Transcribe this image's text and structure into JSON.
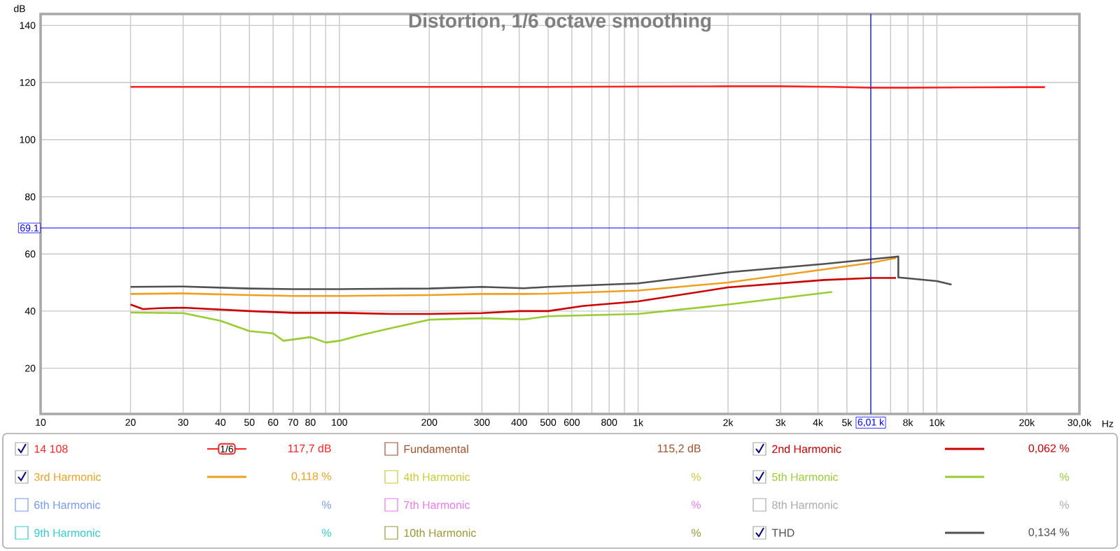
{
  "chart_data": {
    "type": "line",
    "title": "Distortion, 1/6 octave smoothing",
    "ylabel": "dB",
    "xlabel": "Hz",
    "log": "x",
    "grid": true,
    "legend": "bottom",
    "xlim": [
      10,
      30000
    ],
    "ylim": [
      4,
      144
    ],
    "xticks": [
      10,
      20,
      30,
      40,
      50,
      60,
      70,
      80,
      {
        "value": 90,
        "label": null
      },
      100,
      200,
      300,
      400,
      500,
      600,
      {
        "value": 700,
        "label": null
      },
      800,
      {
        "value": 900,
        "label": null
      },
      {
        "value": 1000,
        "label": "1k"
      },
      {
        "value": 2000,
        "label": "2k"
      },
      {
        "value": 3000,
        "label": "3k"
      },
      {
        "value": 4000,
        "label": "4k"
      },
      {
        "value": 5000,
        "label": "5k"
      },
      {
        "value": 6000,
        "label": null
      },
      {
        "value": 7000,
        "label": null
      },
      {
        "value": 8000,
        "label": "8k"
      },
      {
        "value": 9000,
        "label": null
      },
      {
        "value": 10000,
        "label": "10k"
      },
      {
        "value": 20000,
        "label": "20k"
      },
      {
        "value": 30000,
        "label": "30,0k"
      }
    ],
    "yticks": [
      20,
      40,
      60,
      80,
      100,
      120,
      140
    ],
    "ref_lines": [
      {
        "axis": "y",
        "value": 69.1,
        "label": "69.1",
        "color": "#0000ff"
      },
      {
        "axis": "x",
        "value": 6010,
        "label": "6,01 k",
        "color": "#0000ff"
      }
    ],
    "annotations": [
      "1/6",
      "117,7 dB",
      "115,2 dB",
      "0,062 %",
      "0,118 %",
      "%",
      "%",
      "%",
      "%",
      "%",
      "%",
      "%",
      "0,134 %"
    ],
    "series": [
      {
        "name": "14 108",
        "color": "#ff2222",
        "x": [
          20,
          30,
          50,
          100,
          200,
          500,
          1000,
          2000,
          3000,
          4500,
          6000,
          8000,
          12000,
          20000,
          23000
        ],
        "values": [
          118.5,
          118.5,
          118.5,
          118.5,
          118.5,
          118.5,
          118.6,
          118.7,
          118.7,
          118.5,
          118.2,
          118.2,
          118.3,
          118.4,
          118.4
        ]
      },
      {
        "name": "Fundamental",
        "color": "#a0522d"
      },
      {
        "name": "2nd Harmonic",
        "color": "#cc0000",
        "x": [
          20,
          22,
          25,
          30,
          50,
          70,
          100,
          150,
          200,
          300,
          400,
          500,
          656,
          1000,
          2000,
          4200,
          6100,
          7300
        ],
        "values": [
          42.3,
          40.7,
          41.0,
          41.2,
          40.0,
          39.4,
          39.4,
          39.0,
          39.0,
          39.3,
          40.0,
          40.0,
          41.8,
          43.4,
          48.3,
          50.9,
          51.6,
          51.6
        ]
      },
      {
        "name": "3rd Harmonic",
        "color": "#f0a020",
        "x": [
          20,
          30,
          50,
          70,
          100,
          200,
          300,
          415,
          500,
          1000,
          2000,
          4200,
          6100,
          7300
        ],
        "values": [
          46.0,
          46.2,
          45.6,
          45.3,
          45.3,
          45.6,
          46.0,
          46.0,
          46.1,
          47.2,
          50.0,
          54.6,
          57.0,
          58.6
        ]
      },
      {
        "name": "4th Harmonic",
        "color": "#c8c832"
      },
      {
        "name": "5th Harmonic",
        "color": "#99cc33",
        "x": [
          20,
          30,
          40,
          50,
          60,
          65,
          80,
          90,
          100,
          120,
          150,
          200,
          300,
          415,
          500,
          1000,
          2000,
          4460
        ],
        "values": [
          39.5,
          39.3,
          36.6,
          33.0,
          32.2,
          29.6,
          30.9,
          29.0,
          29.6,
          31.8,
          34.1,
          37.0,
          37.5,
          37.1,
          38.2,
          39.0,
          42.3,
          46.7
        ]
      },
      {
        "name": "6th Harmonic",
        "color": "#7799ee"
      },
      {
        "name": "7th Harmonic",
        "color": "#ee77ee"
      },
      {
        "name": "8th Harmonic",
        "color": "#aaaaaa"
      },
      {
        "name": "9th Harmonic",
        "color": "#33cccc"
      },
      {
        "name": "10th Harmonic",
        "color": "#999933"
      },
      {
        "name": "THD",
        "color": "#505050",
        "x": [
          20,
          30,
          50,
          70,
          100,
          200,
          300,
          415,
          500,
          1000,
          2050,
          4180,
          6100,
          7430,
          7430,
          8000,
          10000,
          11200
        ],
        "values": [
          48.5,
          48.6,
          47.9,
          47.7,
          47.7,
          47.9,
          48.5,
          48.0,
          48.5,
          49.7,
          53.7,
          56.5,
          58.2,
          59.1,
          51.8,
          51.5,
          50.5,
          49.3
        ]
      }
    ]
  }
}
